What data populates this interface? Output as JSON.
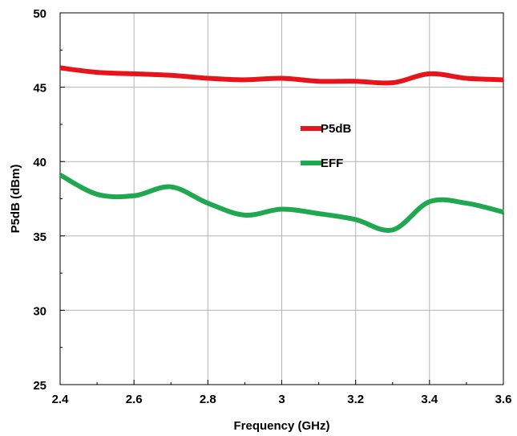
{
  "chart_data": {
    "type": "line",
    "title": "",
    "xlabel": "Frequency (GHz)",
    "ylabel": "P5dB (dBm)",
    "xlim": [
      2.4,
      3.6
    ],
    "ylim": [
      25,
      50
    ],
    "x_ticks": [
      "2.4",
      "2.6",
      "2.8",
      "3",
      "3.2",
      "3.4",
      "3.6"
    ],
    "y_ticks": [
      "25",
      "30",
      "35",
      "40",
      "45",
      "50"
    ],
    "grid": true,
    "legend_position": "center",
    "series": [
      {
        "name": "P5dB",
        "color": "#e8141b",
        "x": [
          2.4,
          2.5,
          2.6,
          2.7,
          2.8,
          2.9,
          3.0,
          3.1,
          3.2,
          3.3,
          3.4,
          3.5,
          3.6
        ],
        "y": [
          46.3,
          46.0,
          45.9,
          45.8,
          45.6,
          45.5,
          45.6,
          45.4,
          45.4,
          45.3,
          45.9,
          45.6,
          45.5
        ]
      },
      {
        "name": "EFF",
        "color": "#1fa850",
        "x": [
          2.4,
          2.5,
          2.6,
          2.7,
          2.8,
          2.9,
          3.0,
          3.1,
          3.2,
          3.3,
          3.4,
          3.5,
          3.6
        ],
        "y": [
          39.1,
          37.8,
          37.7,
          38.3,
          37.2,
          36.4,
          36.8,
          36.5,
          36.1,
          35.4,
          37.3,
          37.2,
          36.6
        ]
      }
    ]
  }
}
